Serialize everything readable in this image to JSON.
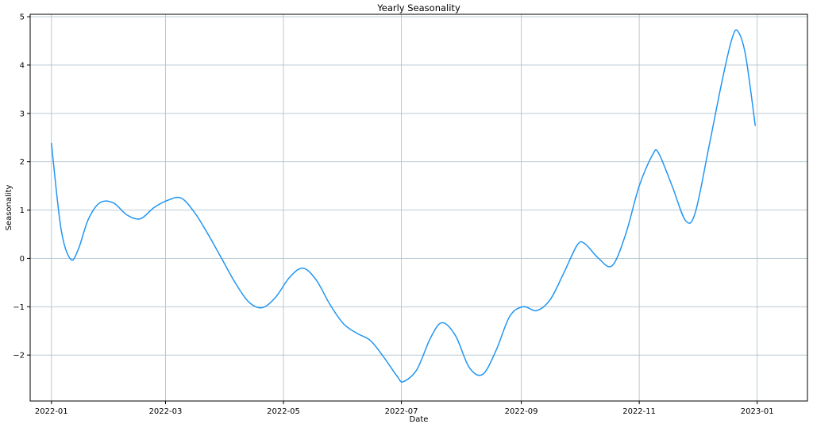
{
  "chart_data": {
    "type": "line",
    "title": "Yearly Seasonality",
    "xlabel": "Date",
    "ylabel": "Seasonality",
    "xlim": [
      "2021-12-21",
      "2023-01-27"
    ],
    "ylim": [
      -2.95,
      5.05
    ],
    "grid": true,
    "x_ticks": [
      "2022-01-01",
      "2022-03-01",
      "2022-05-01",
      "2022-07-01",
      "2022-09-01",
      "2022-11-01",
      "2023-01-01"
    ],
    "x_tick_labels": [
      "2022-01",
      "2022-03",
      "2022-05",
      "2022-07",
      "2022-09",
      "2022-11",
      "2023-01"
    ],
    "y_ticks": [
      -2,
      -1,
      0,
      1,
      2,
      3,
      4,
      5
    ],
    "y_tick_labels": [
      "−2",
      "−1",
      "0",
      "1",
      "2",
      "3",
      "4",
      "5"
    ],
    "colors": {
      "line": "#2196f3",
      "grid": "#b0c4ce",
      "axes": "#000000"
    },
    "series": [
      {
        "x": [
          "2022-01-01",
          "2022-01-06",
          "2022-01-11",
          "2022-01-15",
          "2022-01-20",
          "2022-01-26",
          "2022-02-02",
          "2022-02-09",
          "2022-02-16",
          "2022-02-23",
          "2022-03-02",
          "2022-03-09",
          "2022-03-16",
          "2022-03-23",
          "2022-03-30",
          "2022-04-06",
          "2022-04-13",
          "2022-04-20",
          "2022-04-27",
          "2022-05-04",
          "2022-05-11",
          "2022-05-18",
          "2022-05-25",
          "2022-06-01",
          "2022-06-08",
          "2022-06-15",
          "2022-06-22",
          "2022-06-29",
          "2022-07-02",
          "2022-07-09",
          "2022-07-16",
          "2022-07-22",
          "2022-07-29",
          "2022-08-05",
          "2022-08-12",
          "2022-08-19",
          "2022-08-26",
          "2022-09-02",
          "2022-09-09",
          "2022-09-16",
          "2022-09-23",
          "2022-09-30",
          "2022-10-04",
          "2022-10-11",
          "2022-10-18",
          "2022-10-25",
          "2022-11-01",
          "2022-11-08",
          "2022-11-11",
          "2022-11-18",
          "2022-11-25",
          "2022-11-30",
          "2022-12-07",
          "2022-12-14",
          "2022-12-19",
          "2022-12-22",
          "2022-12-26",
          "2022-12-31"
        ],
        "values": [
          2.38,
          0.6,
          -0.02,
          0.2,
          0.8,
          1.15,
          1.15,
          0.9,
          0.82,
          1.05,
          1.2,
          1.25,
          0.95,
          0.5,
          0.0,
          -0.5,
          -0.9,
          -1.02,
          -0.8,
          -0.4,
          -0.2,
          -0.45,
          -0.95,
          -1.35,
          -1.55,
          -1.7,
          -2.05,
          -2.45,
          -2.55,
          -2.3,
          -1.65,
          -1.33,
          -1.6,
          -2.25,
          -2.4,
          -1.9,
          -1.2,
          -1.0,
          -1.08,
          -0.85,
          -0.3,
          0.28,
          0.3,
          0.0,
          -0.15,
          0.5,
          1.5,
          2.15,
          2.18,
          1.5,
          0.78,
          0.95,
          2.3,
          3.7,
          4.55,
          4.7,
          4.2,
          2.75
        ]
      }
    ]
  }
}
